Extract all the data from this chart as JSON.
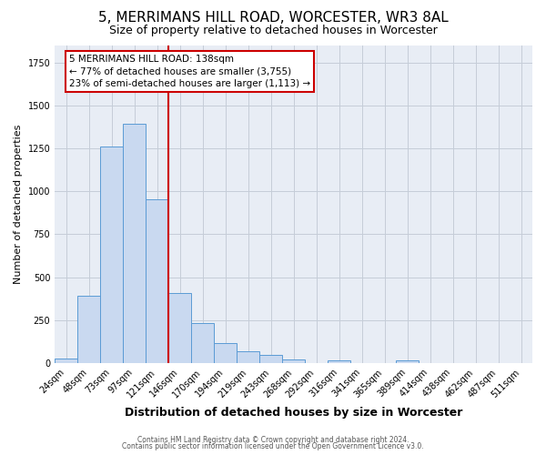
{
  "title": "5, MERRIMANS HILL ROAD, WORCESTER, WR3 8AL",
  "subtitle": "Size of property relative to detached houses in Worcester",
  "xlabel": "Distribution of detached houses by size in Worcester",
  "ylabel": "Number of detached properties",
  "bin_labels": [
    "24sqm",
    "48sqm",
    "73sqm",
    "97sqm",
    "121sqm",
    "146sqm",
    "170sqm",
    "194sqm",
    "219sqm",
    "243sqm",
    "268sqm",
    "292sqm",
    "316sqm",
    "341sqm",
    "365sqm",
    "389sqm",
    "414sqm",
    "438sqm",
    "462sqm",
    "487sqm",
    "511sqm"
  ],
  "bin_values": [
    25,
    390,
    1260,
    1395,
    955,
    410,
    235,
    115,
    70,
    48,
    18,
    0,
    15,
    0,
    0,
    15,
    0,
    0,
    0,
    0,
    0
  ],
  "bar_color": "#c9d9f0",
  "bar_edge_color": "#5b9bd5",
  "line_color": "#cc0000",
  "annotation_text": "5 MERRIMANS HILL ROAD: 138sqm\n← 77% of detached houses are smaller (3,755)\n23% of semi-detached houses are larger (1,113) →",
  "annotation_box_color": "#ffffff",
  "annotation_box_edge": "#cc0000",
  "ylim": [
    0,
    1850
  ],
  "footer1": "Contains HM Land Registry data © Crown copyright and database right 2024.",
  "footer2": "Contains public sector information licensed under the Open Government Licence v3.0.",
  "background_color": "#ffffff",
  "plot_bg_color": "#e8edf5",
  "grid_color": "#c5cdd8",
  "title_fontsize": 11,
  "subtitle_fontsize": 9,
  "ylabel_fontsize": 8,
  "xlabel_fontsize": 9,
  "tick_fontsize": 7,
  "red_line_idx": 5
}
